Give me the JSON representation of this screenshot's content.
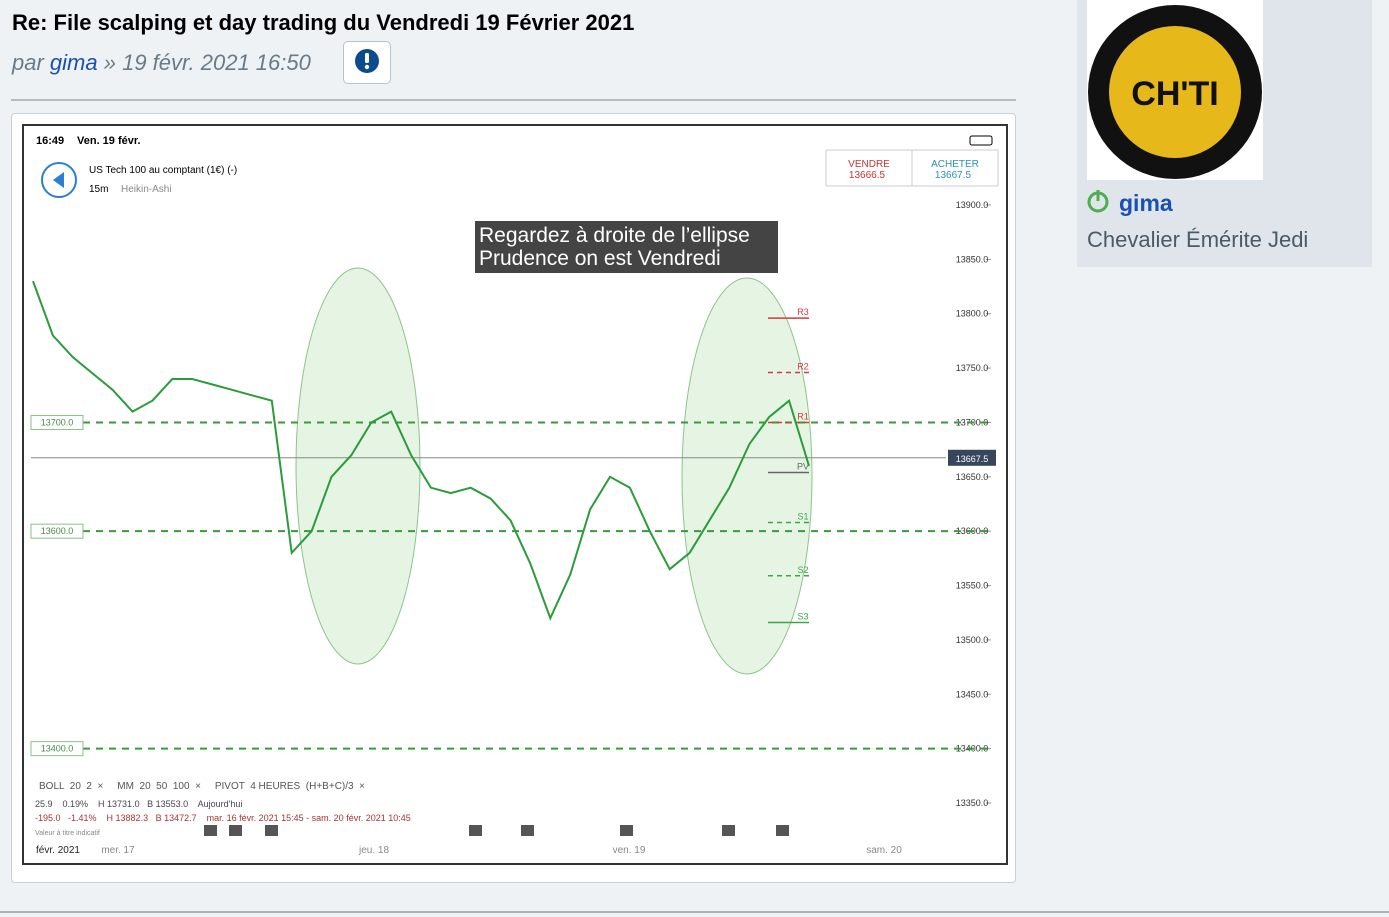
{
  "post": {
    "title": "Re: File scalping et day trading du Vendredi 19 Février 2021",
    "by": "par",
    "author": "gima",
    "date": "» 19 févr. 2021 16:50"
  },
  "sidebar": {
    "username": "gima",
    "rank": "Chevalier Émérite Jedi",
    "avatar_text": "CH'TI"
  },
  "screenshot": {
    "status_time": "16:49",
    "status_date": "Ven. 19 févr.",
    "instrument": "US Tech 100 au comptant (1€) (-)",
    "timeframe": "15m",
    "style": "Heikin-Ashi",
    "sell_label": "VENDRE",
    "sell_price": "13666.5",
    "buy_label": "ACHETER",
    "buy_price": "13667.5",
    "indicators": "BOLL  20  2  ×     MM  20  50  100  ×     PIVOT  4 HEURES  (H+B+C)/3  ×",
    "row1": "25.9    0.19%    H 13731.0   B 13553.0    Aujourd'hui",
    "row2": "-195.0   -1.41%    H 13882.3   B 13472.7    mar. 16 févr. 2021 15:45 - sam. 20 févr. 2021 10:45",
    "note": "Valeur à titre indicatif",
    "x_labels": [
      "févr. 2021",
      "mer. 17",
      "jeu. 18",
      "ven. 19",
      "sam. 20"
    ]
  },
  "chart_data": {
    "type": "line",
    "annotation": [
      "Regardez à droite de l’ellipse",
      "Prudence on est Vendredi"
    ],
    "color": "#2a9d3a",
    "values": [
      13830,
      13780,
      13760,
      13745,
      13730,
      13710,
      13720,
      13740,
      13740,
      13735,
      13730,
      13725,
      13720,
      13580,
      13600,
      13650,
      13670,
      13700,
      13710,
      13670,
      13640,
      13635,
      13640,
      13630,
      13610,
      13570,
      13520,
      13560,
      13620,
      13650,
      13640,
      13600,
      13565,
      13580,
      13610,
      13640,
      13680,
      13705,
      13720,
      13660
    ],
    "ylim": [
      13350,
      13900
    ],
    "yticks": [
      {
        "value": 13900,
        "label": "13900.0"
      },
      {
        "value": 13850,
        "label": "13850.0"
      },
      {
        "value": 13800,
        "label": "13800.0"
      },
      {
        "value": 13750,
        "label": "13750.0"
      },
      {
        "value": 13700,
        "label": "13700.0"
      },
      {
        "value": 13650,
        "label": "13650.0"
      },
      {
        "value": 13600,
        "label": "13600.0"
      },
      {
        "value": 13550,
        "label": "13550.0"
      },
      {
        "value": 13500,
        "label": "13500.0"
      },
      {
        "value": 13450,
        "label": "13450.0"
      },
      {
        "value": 13400,
        "label": "13400.0"
      },
      {
        "value": 13350,
        "label": "13350.0"
      }
    ],
    "levels": [
      {
        "value": 13700,
        "label": "13700.0"
      },
      {
        "value": 13600,
        "label": "13600.0"
      },
      {
        "value": 13400,
        "label": "13400.0"
      }
    ],
    "pivots": [
      {
        "name": "R3",
        "value": 13796,
        "color": "#d23a3a"
      },
      {
        "name": "R2",
        "value": 13746,
        "color": "#d23a3a"
      },
      {
        "name": "R1",
        "value": 13700,
        "color": "#d23a3a"
      },
      {
        "name": "PV",
        "value": 13654,
        "color": "#666666"
      },
      {
        "name": "S1",
        "value": 13608,
        "color": "#3aa64a"
      },
      {
        "name": "S2",
        "value": 13559,
        "color": "#3aa64a"
      },
      {
        "name": "S3",
        "value": 13516,
        "color": "#3aa64a"
      }
    ],
    "current_price": 13667.5
  }
}
